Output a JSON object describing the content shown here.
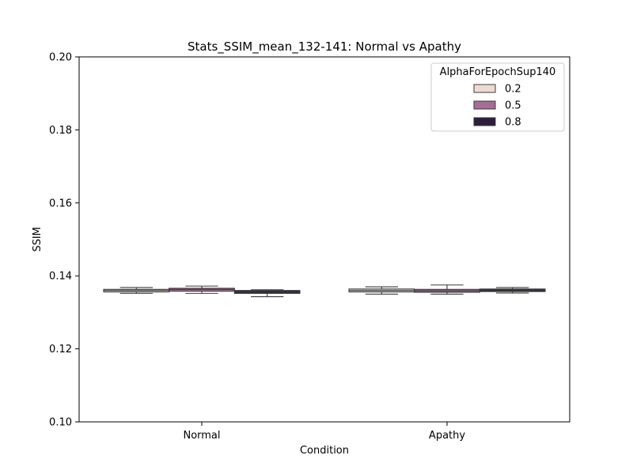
{
  "chart_data": {
    "type": "box",
    "title": "Stats_SSIM_mean_132-141: Normal vs Apathy",
    "xlabel": "Condition",
    "ylabel": "SSIM",
    "ylim": [
      0.1,
      0.2
    ],
    "yticks": [
      "0.10",
      "0.12",
      "0.14",
      "0.16",
      "0.18",
      "0.20"
    ],
    "categories": [
      "Normal",
      "Apathy"
    ],
    "legend": {
      "title": "AlphaForEpochSup140",
      "placement": "top-right"
    },
    "series": [
      {
        "name": "0.2",
        "color": "#eddad2",
        "boxes": [
          {
            "whislo": 0.1352,
            "q1": 0.1356,
            "med": 0.136,
            "q3": 0.1363,
            "whishi": 0.1368
          },
          {
            "whislo": 0.135,
            "q1": 0.1356,
            "med": 0.136,
            "q3": 0.1364,
            "whishi": 0.137
          }
        ]
      },
      {
        "name": "0.5",
        "color": "#a56e94",
        "boxes": [
          {
            "whislo": 0.1352,
            "q1": 0.1358,
            "med": 0.1363,
            "q3": 0.1366,
            "whishi": 0.1372
          },
          {
            "whislo": 0.135,
            "q1": 0.1355,
            "med": 0.1359,
            "q3": 0.1363,
            "whishi": 0.1375
          }
        ]
      },
      {
        "name": "0.8",
        "color": "#2e1e3b",
        "boxes": [
          {
            "whislo": 0.1343,
            "q1": 0.1352,
            "med": 0.1356,
            "q3": 0.136,
            "whishi": 0.1362
          },
          {
            "whislo": 0.1353,
            "q1": 0.1357,
            "med": 0.1361,
            "q3": 0.1364,
            "whishi": 0.1368
          }
        ]
      }
    ]
  }
}
